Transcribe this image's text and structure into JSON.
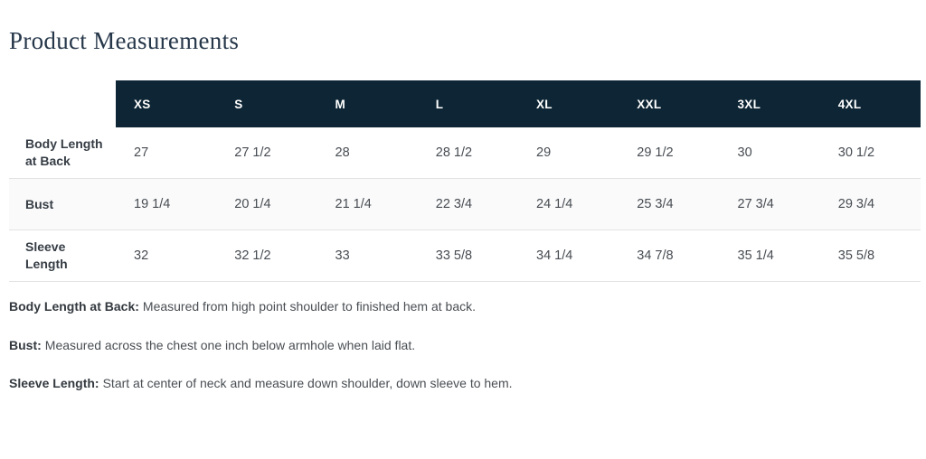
{
  "page": {
    "title": "Product Measurements"
  },
  "colors": {
    "header_bg": "#0d2534",
    "header_text": "#ffffff",
    "alt_row_bg": "#fafafa",
    "border": "#e3e3e4",
    "title_text": "#26374a",
    "body_text": "#474c52"
  },
  "table": {
    "columns": [
      "XS",
      "S",
      "M",
      "L",
      "XL",
      "XXL",
      "3XL",
      "4XL"
    ],
    "rows": [
      {
        "label": "Body Length at Back",
        "values": [
          "27",
          "27 1/2",
          "28",
          "28 1/2",
          "29",
          "29 1/2",
          "30",
          "30 1/2"
        ]
      },
      {
        "label": "Bust",
        "values": [
          "19 1/4",
          "20 1/4",
          "21 1/4",
          "22 3/4",
          "24 1/4",
          "25 3/4",
          "27 3/4",
          "29 3/4"
        ]
      },
      {
        "label": "Sleeve Length",
        "values": [
          "32",
          "32 1/2",
          "33",
          "33 5/8",
          "34 1/4",
          "34 7/8",
          "35 1/4",
          "35 5/8"
        ]
      }
    ]
  },
  "notes": [
    {
      "term": "Body Length at Back:",
      "text": "Measured from high point shoulder to finished hem at back."
    },
    {
      "term": "Bust:",
      "text": "Measured across the chest one inch below armhole when laid flat."
    },
    {
      "term": "Sleeve Length:",
      "text": "Start at center of neck and measure down shoulder, down sleeve to hem."
    }
  ]
}
